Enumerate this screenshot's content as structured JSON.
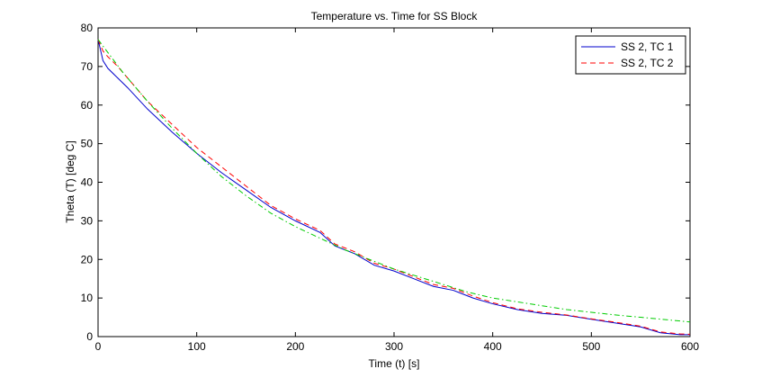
{
  "chart_data": {
    "type": "line",
    "title": "Temperature vs. Time for SS Block",
    "xlabel": "Time (t) [s]",
    "ylabel": "Theta (T) [deg C]",
    "xlim": [
      0,
      600
    ],
    "ylim": [
      0,
      80
    ],
    "xticks": [
      0,
      100,
      200,
      300,
      400,
      500,
      600
    ],
    "yticks": [
      0,
      10,
      20,
      30,
      40,
      50,
      60,
      70,
      80
    ],
    "grid": false,
    "legend_position": "top-right",
    "series": [
      {
        "name": "SS 2, TC 1",
        "color": "#0000cc",
        "style": "solid",
        "x": [
          0,
          5,
          10,
          20,
          30,
          50,
          75,
          100,
          125,
          150,
          175,
          200,
          225,
          240,
          260,
          280,
          300,
          320,
          340,
          360,
          380,
          400,
          425,
          450,
          475,
          500,
          525,
          550,
          570,
          590,
          600
        ],
        "y": [
          77,
          71.5,
          69.5,
          67,
          64.5,
          59,
          53,
          47.5,
          42.5,
          38,
          33.5,
          30,
          27,
          23.5,
          21.5,
          18.5,
          17,
          15,
          13,
          12,
          10,
          8.5,
          7,
          6,
          5.5,
          4.5,
          3.5,
          2.5,
          1,
          0.5,
          0.5
        ]
      },
      {
        "name": "SS 2, TC 2",
        "color": "#ff0000",
        "style": "dashed",
        "x": [
          0,
          5,
          10,
          20,
          30,
          50,
          75,
          100,
          125,
          150,
          175,
          200,
          225,
          240,
          260,
          280,
          300,
          320,
          340,
          360,
          380,
          400,
          425,
          450,
          475,
          500,
          525,
          550,
          570,
          590,
          600
        ],
        "y": [
          77,
          74,
          72.5,
          70,
          67,
          61,
          55,
          49,
          44,
          39,
          34,
          30.5,
          27.5,
          24,
          22,
          19,
          17.5,
          15.5,
          13.5,
          12.5,
          10.5,
          8.8,
          7.2,
          6.3,
          5.6,
          4.6,
          3.7,
          2.7,
          1.2,
          0.7,
          0.6
        ]
      },
      {
        "name": "",
        "color": "#00cc00",
        "style": "dashdot",
        "x": [
          0,
          25,
          50,
          75,
          100,
          125,
          150,
          175,
          200,
          225,
          250,
          275,
          300,
          325,
          350,
          375,
          400,
          425,
          450,
          475,
          500,
          525,
          550,
          575,
          600
        ],
        "y": [
          77,
          68.5,
          61,
          54,
          47.5,
          41.5,
          36.5,
          32,
          28.5,
          25.5,
          22.5,
          20,
          17.5,
          15.5,
          13.5,
          11.5,
          10,
          9,
          8,
          7,
          6.3,
          5.6,
          5,
          4.4,
          3.8
        ]
      }
    ]
  }
}
